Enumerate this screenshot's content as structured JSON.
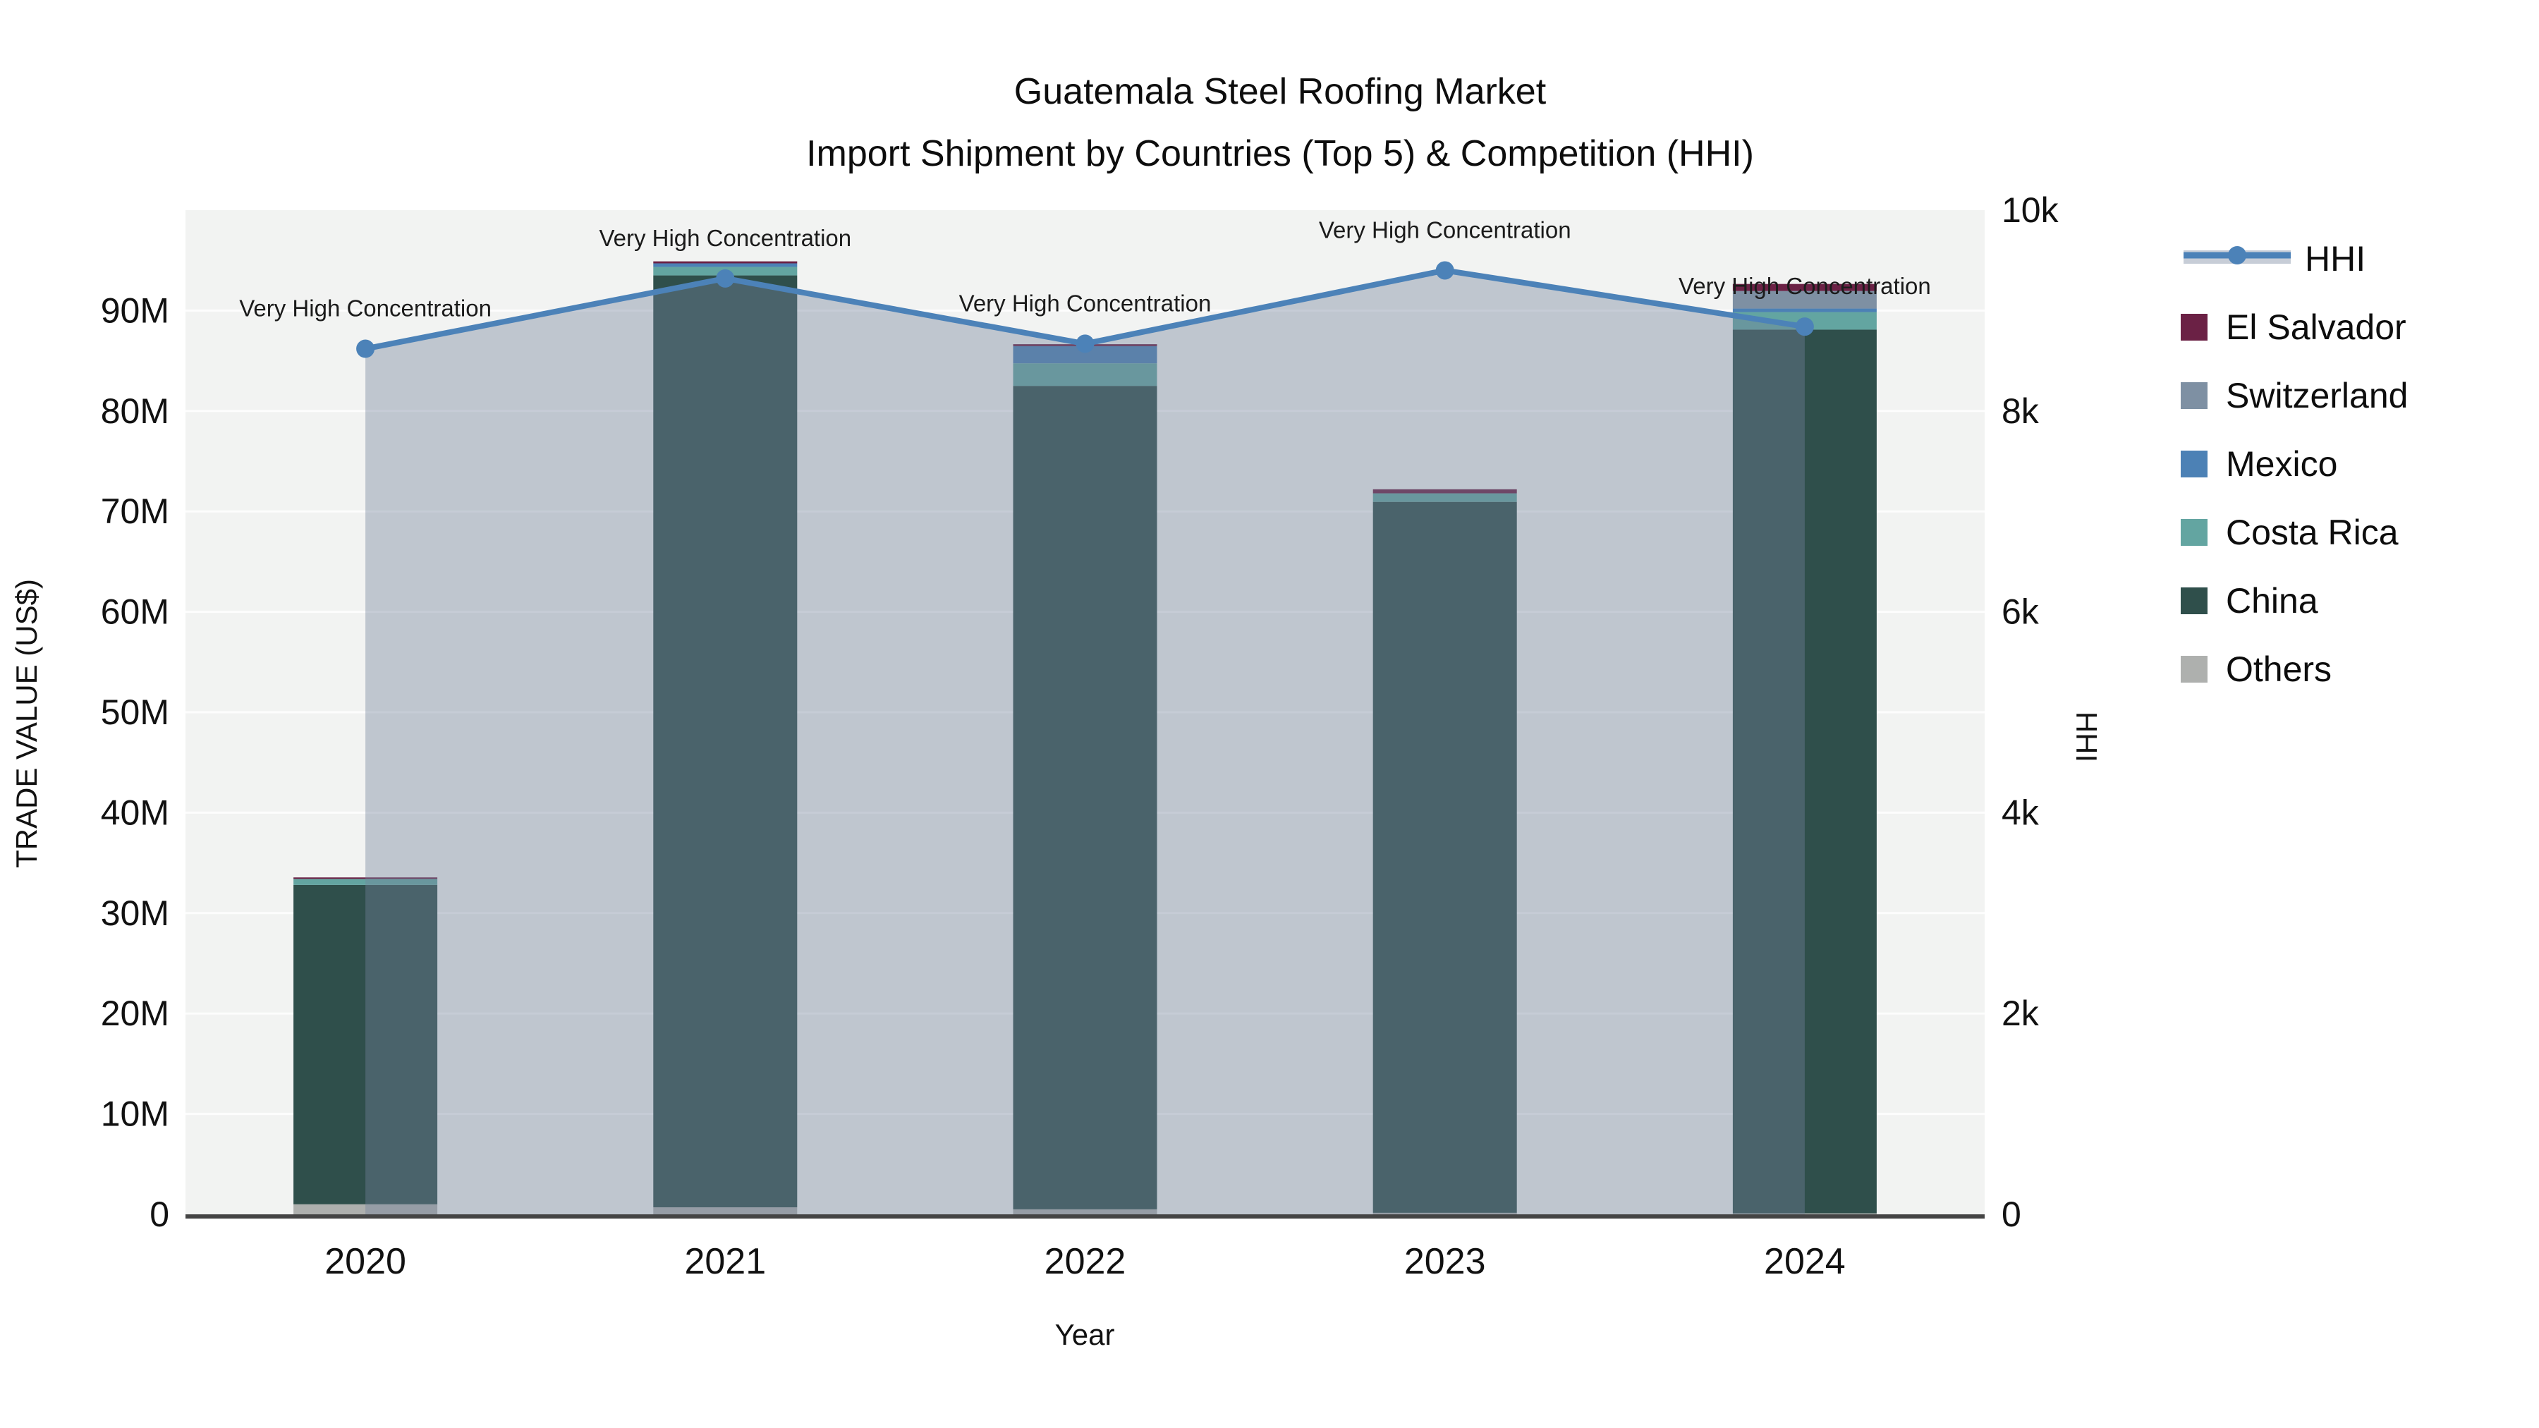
{
  "title": {
    "line1": "Guatemala Steel Roofing Market",
    "line2": "Import Shipment by Countries (Top 5) & Competition (HHI)"
  },
  "axes": {
    "x_title": "Year",
    "y_left_title": "TRADE VALUE (US$)",
    "y_right_title": "HHI",
    "y_left_tick_labels": [
      "0",
      "10M",
      "20M",
      "30M",
      "40M",
      "50M",
      "60M",
      "70M",
      "80M",
      "90M"
    ],
    "y_right_tick_labels": [
      "0",
      "2k",
      "4k",
      "6k",
      "8k",
      "10k"
    ]
  },
  "legend": {
    "items": [
      {
        "label": "HHI",
        "type": "line",
        "color": "#4C82B8"
      },
      {
        "label": "El Salvador",
        "type": "swatch",
        "color": "#6B2145"
      },
      {
        "label": "Switzerland",
        "type": "swatch",
        "color": "#7E90A3"
      },
      {
        "label": "Mexico",
        "type": "swatch",
        "color": "#4C81B5"
      },
      {
        "label": "Costa Rica",
        "type": "swatch",
        "color": "#63A5A1"
      },
      {
        "label": "China",
        "type": "swatch",
        "color": "#2F4F4B"
      },
      {
        "label": "Others",
        "type": "swatch",
        "color": "#AEB0AE"
      }
    ]
  },
  "chart_data": {
    "type": "bar+line",
    "title": "Guatemala Steel Roofing Market — Import Shipment by Countries (Top 5) & Competition (HHI)",
    "categories": [
      "2020",
      "2021",
      "2022",
      "2023",
      "2024"
    ],
    "bar_unit": "M US$ (trade value, millions)",
    "stack_order_bottom_to_top": [
      "Others",
      "China",
      "Costa Rica",
      "Mexico",
      "Switzerland",
      "El Salvador"
    ],
    "series": [
      {
        "name": "Others",
        "color": "#AEB0AE",
        "values": [
          1.0,
          0.7,
          0.5,
          0.15,
          0.1
        ]
      },
      {
        "name": "China",
        "color": "#2F4F4B",
        "values": [
          31.8,
          92.8,
          82.0,
          70.8,
          88.0
        ]
      },
      {
        "name": "Costa Rica",
        "color": "#63A5A1",
        "values": [
          0.6,
          0.85,
          2.25,
          0.85,
          1.75
        ]
      },
      {
        "name": "Mexico",
        "color": "#4C81B5",
        "values": [
          0,
          0.35,
          1.7,
          0,
          0.35
        ]
      },
      {
        "name": "Switzerland",
        "color": "#7E90A3",
        "values": [
          0,
          0,
          0,
          0,
          1.75
        ]
      },
      {
        "name": "El Salvador",
        "color": "#6B2145",
        "values": [
          0.15,
          0.2,
          0.2,
          0.4,
          0.7
        ]
      }
    ],
    "bar_totals": [
      33.6,
      94.9,
      86.65,
      72.2,
      92.65
    ],
    "line_series": {
      "name": "HHI",
      "color": "#4C82B8",
      "fill_color": "rgba(116,130,155,0.40)",
      "values": [
        8620,
        9320,
        8670,
        9400,
        8840
      ]
    },
    "annotation_text": "Very High Concentration",
    "xlabel": "Year",
    "ylabel_left": "TRADE VALUE (US$)",
    "ylabel_right": "HHI",
    "y_left": {
      "min": 0,
      "max": 100,
      "unit": "M",
      "tick_step": 10
    },
    "y_right": {
      "min": 0,
      "max": 10000,
      "tick_step": 2000
    },
    "grid": "horizontal",
    "legend_position": "right"
  },
  "colors": {
    "plot_bg": "#F2F3F2",
    "grid": "#FFFFFF",
    "axis_line": "#444444",
    "text": "#111111"
  }
}
